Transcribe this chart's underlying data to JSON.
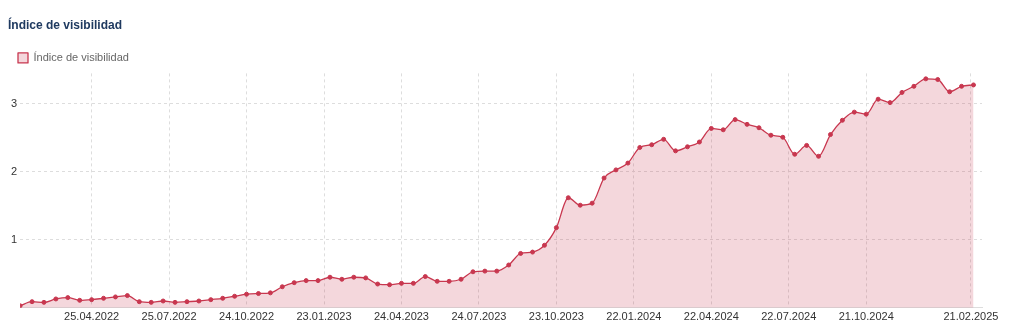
{
  "chart_data": {
    "type": "area",
    "title": "Índice de visibilidad",
    "x": [
      "2022-01-31",
      "2022-02-14",
      "2022-02-28",
      "2022-03-14",
      "2022-03-28",
      "2022-04-11",
      "2022-04-25",
      "2022-05-09",
      "2022-05-23",
      "2022-06-06",
      "2022-06-20",
      "2022-07-04",
      "2022-07-18",
      "2022-08-01",
      "2022-08-15",
      "2022-08-29",
      "2022-09-12",
      "2022-09-26",
      "2022-10-10",
      "2022-10-24",
      "2022-11-07",
      "2022-11-21",
      "2022-12-05",
      "2022-12-19",
      "2023-01-02",
      "2023-01-16",
      "2023-01-30",
      "2023-02-13",
      "2023-02-27",
      "2023-03-13",
      "2023-03-27",
      "2023-04-10",
      "2023-04-24",
      "2023-05-08",
      "2023-05-22",
      "2023-06-05",
      "2023-06-19",
      "2023-07-03",
      "2023-07-17",
      "2023-07-31",
      "2023-08-14",
      "2023-08-28",
      "2023-09-11",
      "2023-09-25",
      "2023-10-09",
      "2023-10-23",
      "2023-11-06",
      "2023-11-20",
      "2023-12-04",
      "2023-12-18",
      "2024-01-01",
      "2024-01-15",
      "2024-01-29",
      "2024-02-12",
      "2024-02-26",
      "2024-03-11",
      "2024-03-25",
      "2024-04-08",
      "2024-04-22",
      "2024-05-06",
      "2024-05-20",
      "2024-06-03",
      "2024-06-17",
      "2024-07-01",
      "2024-07-15",
      "2024-07-29",
      "2024-08-12",
      "2024-08-26",
      "2024-09-09",
      "2024-09-23",
      "2024-10-07",
      "2024-10-21",
      "2024-11-04",
      "2024-11-18",
      "2024-12-02",
      "2024-12-16",
      "2024-12-30",
      "2025-01-13",
      "2025-01-27",
      "2025-02-10",
      "2025-02-24"
    ],
    "series": [
      {
        "name": "Índice de visibilidad",
        "color": "#c8374f",
        "values": [
          0.03,
          0.09,
          0.08,
          0.13,
          0.15,
          0.11,
          0.12,
          0.14,
          0.16,
          0.18,
          0.09,
          0.08,
          0.1,
          0.08,
          0.09,
          0.1,
          0.12,
          0.14,
          0.17,
          0.2,
          0.21,
          0.22,
          0.31,
          0.37,
          0.4,
          0.4,
          0.45,
          0.42,
          0.45,
          0.44,
          0.35,
          0.34,
          0.36,
          0.36,
          0.46,
          0.39,
          0.39,
          0.42,
          0.53,
          0.54,
          0.54,
          0.63,
          0.8,
          0.82,
          0.92,
          1.18,
          1.62,
          1.51,
          1.54,
          1.91,
          2.03,
          2.13,
          2.36,
          2.4,
          2.48,
          2.31,
          2.37,
          2.44,
          2.64,
          2.62,
          2.77,
          2.7,
          2.65,
          2.54,
          2.51,
          2.26,
          2.39,
          2.23,
          2.55,
          2.76,
          2.88,
          2.85,
          3.07,
          3.02,
          3.17,
          3.26,
          3.37,
          3.36,
          3.18,
          3.26,
          3.28
        ]
      }
    ],
    "xlim": [
      "2022-01-31",
      "2025-03-06"
    ],
    "xticks": [
      {
        "value": "2022-04-25",
        "label": "25.04.2022"
      },
      {
        "value": "2022-07-25",
        "label": "25.07.2022"
      },
      {
        "value": "2022-10-24",
        "label": "24.10.2022"
      },
      {
        "value": "2023-01-23",
        "label": "23.01.2023"
      },
      {
        "value": "2023-04-24",
        "label": "24.04.2023"
      },
      {
        "value": "2023-07-24",
        "label": "24.07.2023"
      },
      {
        "value": "2023-10-23",
        "label": "23.10.2023"
      },
      {
        "value": "2024-01-22",
        "label": "22.01.2024"
      },
      {
        "value": "2024-04-22",
        "label": "22.04.2024"
      },
      {
        "value": "2024-07-22",
        "label": "22.07.2024"
      },
      {
        "value": "2024-10-21",
        "label": "21.10.2024"
      },
      {
        "value": "2025-02-21",
        "label": "21.02.2025"
      }
    ],
    "ylim": [
      0,
      3.45
    ],
    "yticks": [
      1,
      2,
      3
    ],
    "grid": true,
    "legend": "top left",
    "marker": "circle",
    "line_style": "solid"
  }
}
